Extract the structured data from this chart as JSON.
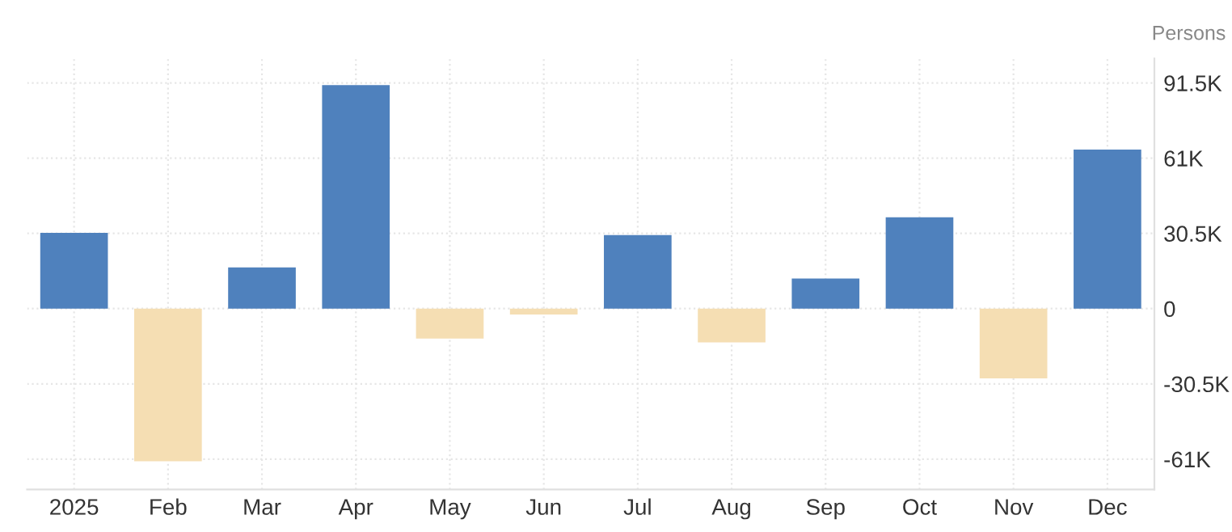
{
  "chart_data": {
    "type": "bar",
    "ylabel": "Persons",
    "categories": [
      "2025",
      "Feb",
      "Mar",
      "Apr",
      "May",
      "Jun",
      "Jul",
      "Aug",
      "Sep",
      "Oct",
      "Nov",
      "Dec"
    ],
    "values": [
      30700,
      -61900,
      16700,
      90600,
      -12100,
      -2400,
      29800,
      -13700,
      12200,
      37000,
      -28300,
      64500
    ],
    "colors": [
      "#4f81bd",
      "#f5deb3",
      "#4f81bd",
      "#4f81bd",
      "#f5deb3",
      "#f5deb3",
      "#4f81bd",
      "#f5deb3",
      "#4f81bd",
      "#4f81bd",
      "#f5deb3",
      "#4f81bd"
    ],
    "ylim": [
      -73300,
      101400
    ],
    "yticks": [
      {
        "value": -61000,
        "label": "-61K"
      },
      {
        "value": -30500,
        "label": "-30.5K"
      },
      0,
      {
        "value": 30500,
        "label": "30.5K"
      },
      {
        "value": 61000,
        "label": "61K"
      },
      {
        "value": 91500,
        "label": "91.5K"
      }
    ],
    "grid": true
  }
}
